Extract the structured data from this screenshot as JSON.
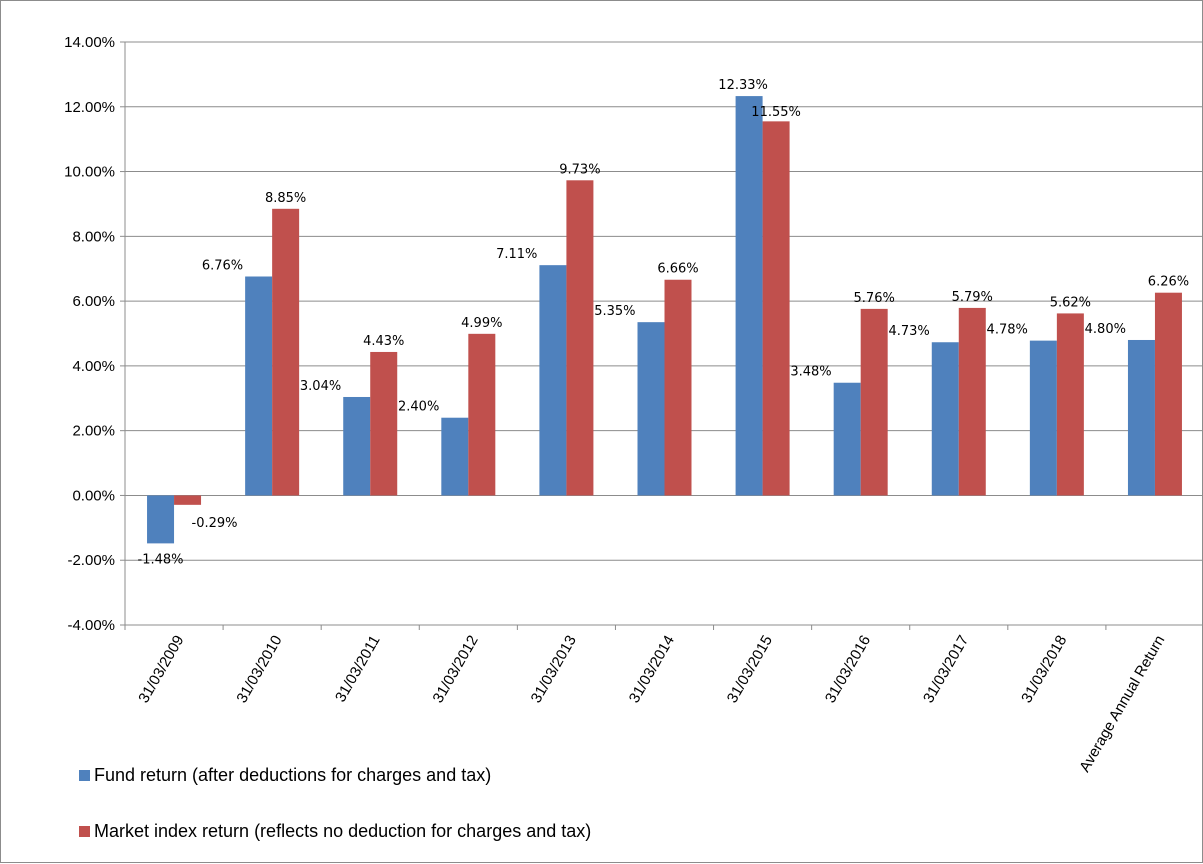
{
  "chart_data": {
    "type": "bar",
    "title": "",
    "xlabel": "",
    "ylabel": "",
    "categories": [
      "31/03/2009",
      "31/03/2010",
      "31/03/2011",
      "31/03/2012",
      "31/03/2013",
      "31/03/2014",
      "31/03/2015",
      "31/03/2016",
      "31/03/2017",
      "31/03/2018",
      "Average Annual Return"
    ],
    "series": [
      {
        "name": "Fund return (after deductions for charges and tax)",
        "color": "#4f81bd",
        "values": [
          -1.48,
          6.76,
          3.04,
          2.4,
          7.11,
          5.35,
          12.33,
          3.48,
          4.73,
          4.78,
          4.8
        ],
        "labels": [
          "-1.48%",
          "6.76%",
          "3.04%",
          "2.40%",
          "7.11%",
          "5.35%",
          "12.33%",
          "3.48%",
          "4.73%",
          "4.78%",
          "4.80%"
        ]
      },
      {
        "name": "Market index return (reflects no deduction for charges and tax)",
        "color": "#c0504d",
        "values": [
          -0.29,
          8.85,
          4.43,
          4.99,
          9.73,
          6.66,
          11.55,
          5.76,
          5.79,
          5.62,
          6.26
        ],
        "labels": [
          "-0.29%",
          "8.85%",
          "4.43%",
          "4.99%",
          "9.73%",
          "6.66%",
          "11.55%",
          "5.76%",
          "5.79%",
          "5.62%",
          "6.26%"
        ]
      }
    ],
    "y_ticks": [
      "-4.00%",
      "-2.00%",
      "0.00%",
      "2.00%",
      "4.00%",
      "6.00%",
      "8.00%",
      "10.00%",
      "12.00%",
      "14.00%"
    ],
    "ylim": [
      -4,
      14
    ],
    "y_step": 2,
    "grid": true,
    "legend_position": "bottom-left"
  }
}
